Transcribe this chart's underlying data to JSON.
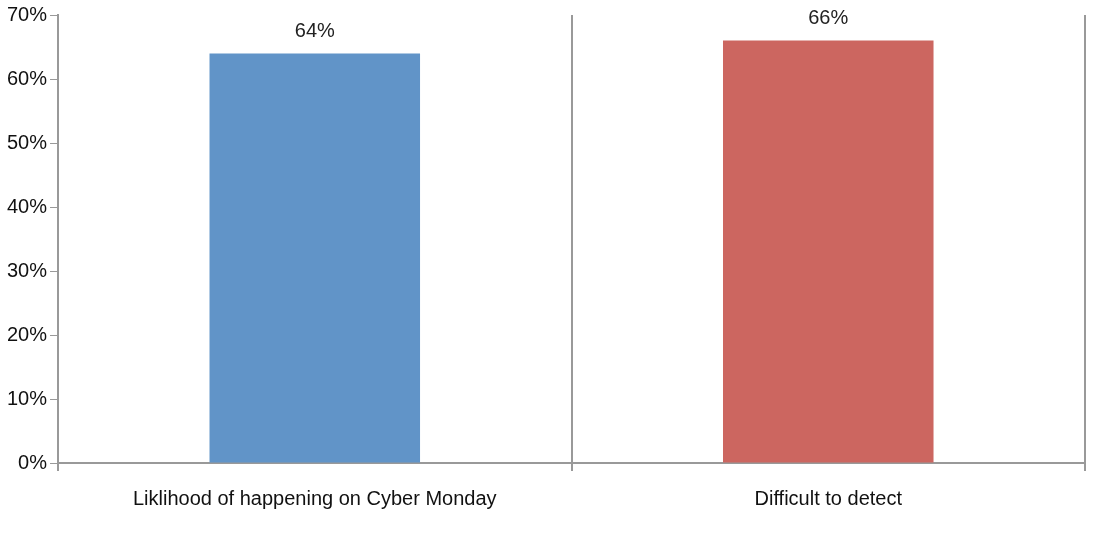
{
  "chart_data": {
    "type": "bar",
    "categories": [
      "Liklihood of happening on Cyber Monday",
      "Difficult to detect"
    ],
    "values": [
      64,
      66
    ],
    "colors": [
      "#6194c8",
      "#cc6660"
    ],
    "value_labels": [
      "64%",
      "66%"
    ],
    "ylim": [
      0,
      70
    ],
    "yticks": [
      {
        "value": 0,
        "label": "0%"
      },
      {
        "value": 10,
        "label": "10%"
      },
      {
        "value": 20,
        "label": "20%"
      },
      {
        "value": 30,
        "label": "30%"
      },
      {
        "value": 40,
        "label": "40%"
      },
      {
        "value": 50,
        "label": "50%"
      },
      {
        "value": 60,
        "label": "60%"
      },
      {
        "value": 70,
        "label": "70%"
      }
    ],
    "grid": "x",
    "legend": false
  }
}
